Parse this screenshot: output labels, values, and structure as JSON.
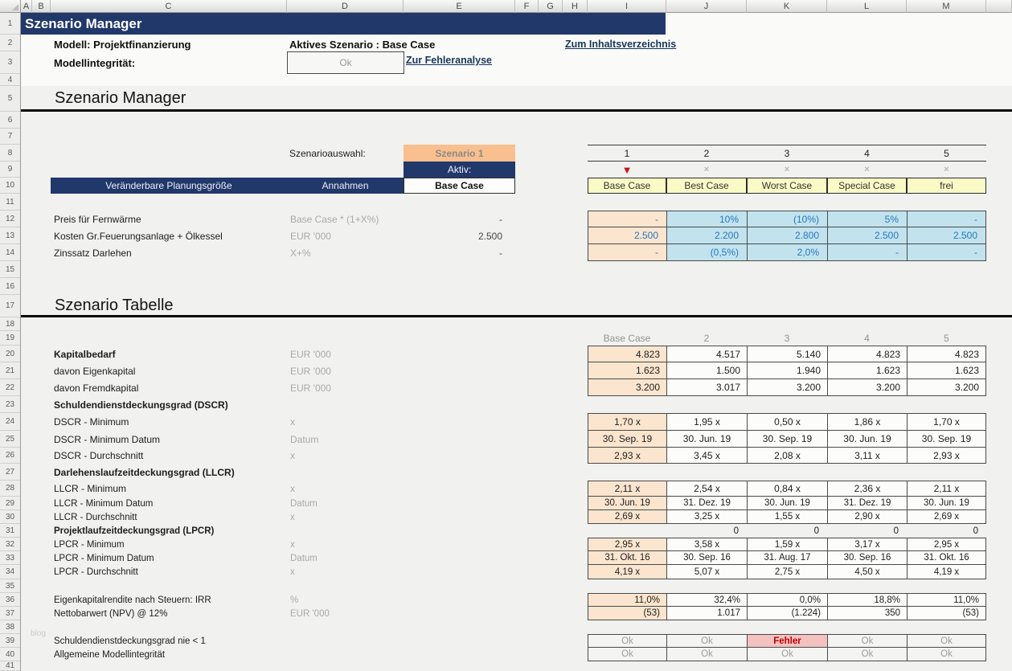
{
  "colors": {
    "accent_navy": "#21386B",
    "selector_orange": "#FABF8F",
    "scenario_yellow": "#FAFAC6",
    "input_blue_bg": "#C2E3EE",
    "input_blue_text": "#2478C0",
    "base_col_peach": "#FBE5CE",
    "link_navy": "#17365D",
    "error_red": "#C00000",
    "error_bg": "#F3C2C0",
    "active_marker_red": "#CC1111"
  },
  "grid": {
    "column_letters": [
      "A",
      "B",
      "C",
      "D",
      "E",
      "F",
      "G",
      "H",
      "I",
      "J",
      "K",
      "L",
      "M"
    ],
    "row_numbers": [
      "1",
      "2",
      "3",
      "4",
      "5",
      "6",
      "7",
      "8",
      "9",
      "10",
      "11",
      "12",
      "13",
      "14",
      "15",
      "16",
      "17",
      "18",
      "19",
      "20",
      "21",
      "22",
      "23",
      "24",
      "25",
      "26",
      "27",
      "28",
      "29",
      "30",
      "31",
      "32",
      "33",
      "34",
      "35",
      "36",
      "37",
      "38",
      "39",
      "40",
      "41"
    ]
  },
  "topbar": {
    "title": "Szenario Manager",
    "model": "Modell: Projektfinanzierung",
    "active_scenario": "Aktives Szenario : Base Case",
    "integrity_label": "Modellintegrität:",
    "integrity_status": "Ok",
    "toc_link": "Zum Inhaltsverzeichnis",
    "error_link": "Zur Fehleranalyse"
  },
  "manager": {
    "heading": "Szenario Manager",
    "selector_label": "Szenarioauswahl:",
    "selected_scenario": "Szenario 1",
    "aktiv_label": "Aktiv:",
    "planning_header": "Veränderbare Planungsgröße",
    "assumptions_header": "Annahmen",
    "base_header": "Base Case",
    "scenarios": {
      "numbers": [
        "1",
        "2",
        "3",
        "4",
        "5"
      ],
      "active_index": 0,
      "active_marker": "▼",
      "inactive_marker": "×",
      "names": [
        "Base Case",
        "Best Case",
        "Worst Case",
        "Special Case",
        "frei"
      ]
    },
    "rows": [
      {
        "label": "Preis für Fernwärme",
        "assumption": "Base Case * (1+X%)",
        "base": "-",
        "values": [
          "-",
          "10%",
          "(10%)",
          "5%",
          "-"
        ]
      },
      {
        "label": "Kosten Gr.Feuerungsanlage + Ölkessel",
        "assumption": "EUR '000",
        "base": "2.500",
        "values": [
          "2.500",
          "2.200",
          "2.800",
          "2.500",
          "2.500"
        ]
      },
      {
        "label": "Zinssatz Darlehen",
        "assumption": "X+%",
        "base": "-",
        "values": [
          "-",
          "(0,5%)",
          "2,0%",
          "-",
          "-"
        ]
      }
    ]
  },
  "table": {
    "heading": "Szenario Tabelle",
    "column_headers": [
      "Base Case",
      "2",
      "3",
      "4",
      "5"
    ],
    "rows": [
      {
        "type": "data",
        "label": "Kapitalbedarf",
        "bold": true,
        "unit": "EUR '000",
        "align": "right",
        "values": [
          "4.823",
          "4.517",
          "5.140",
          "4.823",
          "4.823"
        ]
      },
      {
        "type": "data",
        "label": "davon Eigenkapital",
        "unit": "EUR '000",
        "align": "right",
        "values": [
          "1.623",
          "1.500",
          "1.940",
          "1.623",
          "1.623"
        ]
      },
      {
        "type": "data",
        "label": "davon Fremdkapital",
        "unit": "EUR '000",
        "align": "right",
        "values": [
          "3.200",
          "3.017",
          "3.200",
          "3.200",
          "3.200"
        ]
      },
      {
        "type": "section",
        "label": "Schuldendienstdeckungsgrad (DSCR)"
      },
      {
        "type": "data",
        "label": "DSCR - Minimum",
        "unit": "x",
        "align": "center",
        "values": [
          "1,70 x",
          "1,95 x",
          "0,50 x",
          "1,86 x",
          "1,70 x"
        ]
      },
      {
        "type": "data",
        "label": "DSCR - Minimum Datum",
        "unit": "Datum",
        "align": "center",
        "values": [
          "30. Sep. 19",
          "30. Jun. 19",
          "30. Sep. 19",
          "30. Jun. 19",
          "30. Sep. 19"
        ]
      },
      {
        "type": "data",
        "label": "DSCR - Durchschnitt",
        "unit": "x",
        "align": "center",
        "values": [
          "2,93 x",
          "3,45 x",
          "2,08 x",
          "3,11 x",
          "2,93 x"
        ]
      },
      {
        "type": "section",
        "label": "Darlehenslaufzeitdeckungsgrad (LLCR)"
      },
      {
        "type": "data",
        "label": "LLCR - Minimum",
        "unit": "x",
        "align": "center",
        "values": [
          "2,11 x",
          "2,54 x",
          "0,84 x",
          "2,36 x",
          "2,11 x"
        ]
      },
      {
        "type": "data",
        "label": "LLCR - Minimum Datum",
        "unit": "Datum",
        "align": "center",
        "values": [
          "30. Jun. 19",
          "31. Dez. 19",
          "30. Jun. 19",
          "31. Dez. 19",
          "30. Jun. 19"
        ]
      },
      {
        "type": "data",
        "label": "LLCR - Durchschnitt",
        "unit": "x",
        "align": "center",
        "values": [
          "2,69 x",
          "3,25 x",
          "1,55 x",
          "2,90 x",
          "2,69 x"
        ]
      },
      {
        "type": "section",
        "label": "Projektlaufzeitdeckungsgrad (LPCR)",
        "zeros": [
          "0",
          "0",
          "0",
          "0"
        ]
      },
      {
        "type": "data",
        "label": "LPCR - Minimum",
        "unit": "x",
        "align": "center",
        "values": [
          "2,95 x",
          "3,58 x",
          "1,59 x",
          "3,17 x",
          "2,95 x"
        ]
      },
      {
        "type": "data",
        "label": "LPCR - Minimum Datum",
        "unit": "Datum",
        "align": "center",
        "values": [
          "31. Okt. 16",
          "30. Sep. 16",
          "31. Aug. 17",
          "30. Sep. 16",
          "31. Okt. 16"
        ]
      },
      {
        "type": "data",
        "label": "LPCR - Durchschnitt",
        "unit": "x",
        "align": "center",
        "values": [
          "4,19 x",
          "5,07 x",
          "2,75 x",
          "4,50 x",
          "4,19 x"
        ]
      },
      {
        "type": "data",
        "label": "Eigenkapitalrendite nach Steuern: IRR",
        "unit": "%",
        "align": "right",
        "values": [
          "11,0%",
          "32,4%",
          "0,0%",
          "18,8%",
          "11,0%"
        ]
      },
      {
        "type": "data",
        "label": "Nettobarwert (NPV) @ 12%",
        "unit": "EUR '000",
        "align": "right",
        "values": [
          "(53)",
          "1.017",
          "(1.224)",
          "350",
          "(53)"
        ]
      },
      {
        "type": "status",
        "label": "Schuldendienstdeckungsgrad nie < 1",
        "values": [
          "Ok",
          "Ok",
          "Fehler",
          "Ok",
          "Ok"
        ]
      },
      {
        "type": "status",
        "label": "Allgemeine Modellintegrität",
        "values": [
          "Ok",
          "Ok",
          "Ok",
          "Ok",
          "Ok"
        ]
      }
    ]
  },
  "watermark": "blog"
}
